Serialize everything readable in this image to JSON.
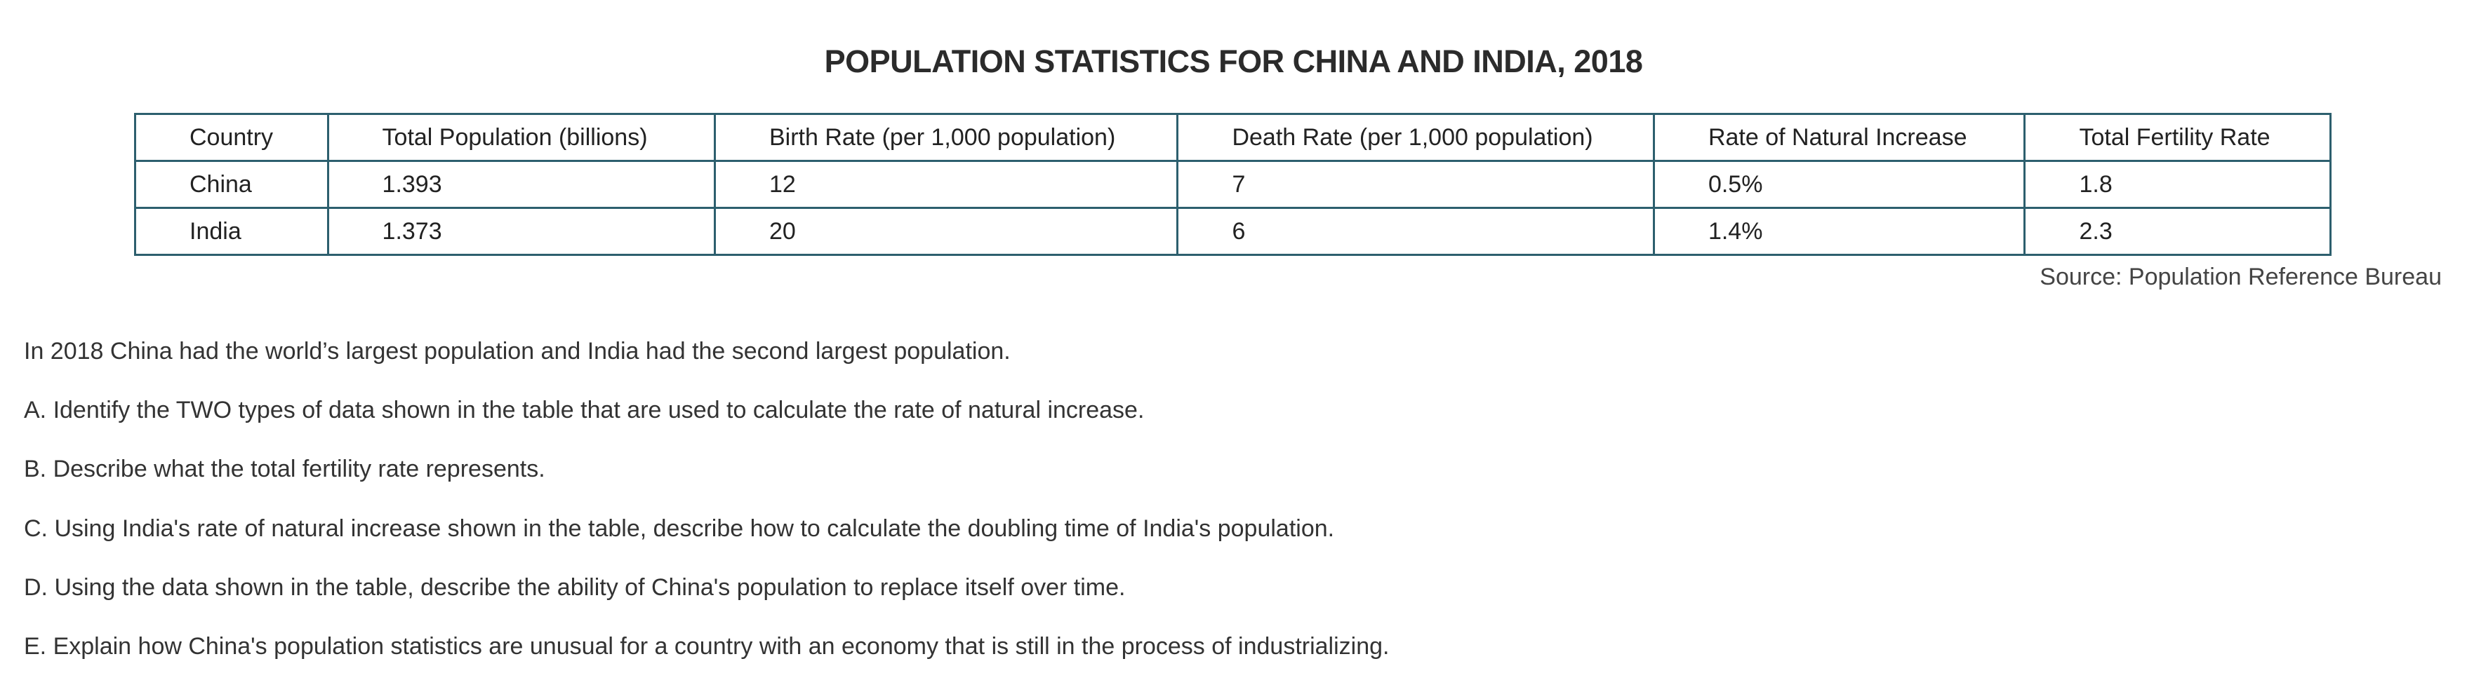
{
  "title": "POPULATION STATISTICS FOR CHINA AND INDIA, 2018",
  "table": {
    "headers": [
      "Country",
      "Total Population (billions)",
      "Birth Rate (per 1,000 population)",
      "Death Rate (per 1,000 population)",
      "Rate of Natural Increase",
      "Total Fertility Rate"
    ],
    "rows": [
      [
        "China",
        "1.393",
        "12",
        "7",
        "0.5%",
        "1.8"
      ],
      [
        "India",
        "1.373",
        "20",
        "6",
        "1.4%",
        "2.3"
      ]
    ]
  },
  "source": "Source: Population Reference Bureau",
  "paragraphs": [
    "In 2018 China had the world’s largest population and India had the second largest population.",
    "A. Identify the TWO types of data shown in the table that are used to calculate the rate of natural increase.",
    "B. Describe what the total fertility rate represents.",
    "C. Using India's rate of natural increase shown in the table, describe how to calculate the doubling time of India's population.",
    "D. Using the data shown in the table, describe the ability of China's population to replace itself over time.",
    "E. Explain how China's population statistics are unusual for a country with an economy that is still in the process of industrializing."
  ]
}
